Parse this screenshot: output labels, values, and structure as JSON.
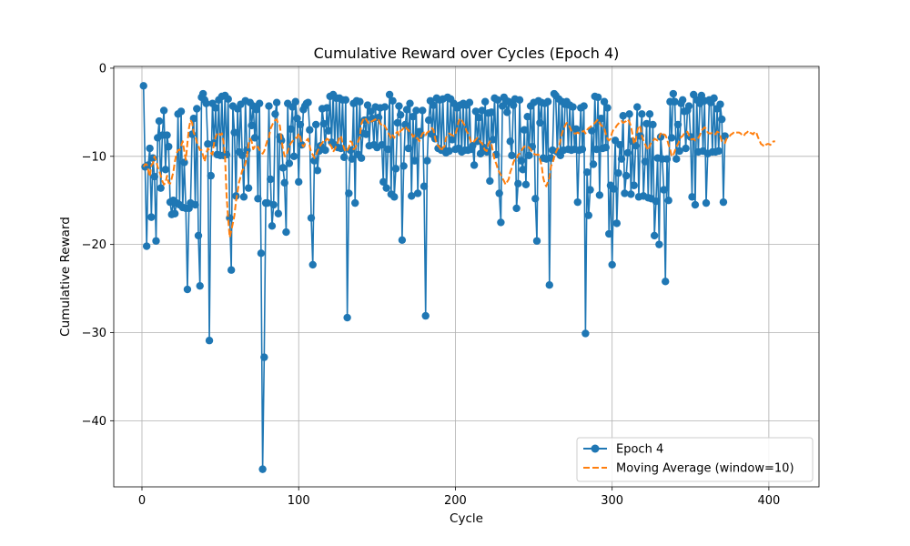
{
  "chart_data": {
    "type": "line",
    "title": "Cumulative Reward over Cycles (Epoch 4)",
    "xlabel": "Cycle",
    "ylabel": "Cumulative Reward",
    "xlim": [
      -18,
      432
    ],
    "ylim": [
      -47.5,
      0.2
    ],
    "xticks": [
      0,
      100,
      200,
      300,
      400
    ],
    "yticks": [
      0,
      -10,
      -20,
      -30,
      -40
    ],
    "ytick_labels": [
      "0",
      "−10",
      "−20",
      "−30",
      "−40"
    ],
    "grid": true,
    "legend_position": "lower right",
    "colors": {
      "series": "#1f77b4",
      "moving_average": "#ff7f0e"
    },
    "series": [
      {
        "name": "Epoch 4",
        "style": "line-marker",
        "x_start": 1,
        "values": [
          -2.0,
          -11.2,
          -20.2,
          -11.0,
          -9.1,
          -16.9,
          -10.2,
          -12.3,
          -19.6,
          -7.9,
          -6.0,
          -13.6,
          -7.6,
          -4.8,
          -11.5,
          -7.6,
          -8.9,
          -15.2,
          -16.6,
          -15.0,
          -16.5,
          -15.3,
          -5.2,
          -15.5,
          -4.9,
          -15.8,
          -10.7,
          -15.9,
          -25.1,
          -15.9,
          -15.3,
          -7.5,
          -5.7,
          -15.5,
          -4.6,
          -19.0,
          -24.7,
          -3.3,
          -2.9,
          -3.6,
          -4.0,
          -8.6,
          -30.9,
          -12.2,
          -4.0,
          -8.5,
          -4.5,
          -9.8,
          -3.6,
          -9.9,
          -3.2,
          -9.9,
          -3.1,
          -9.8,
          -3.5,
          -17.0,
          -22.9,
          -4.3,
          -7.3,
          -14.5,
          -4.6,
          -9.5,
          -4.1,
          -9.9,
          -14.6,
          -3.7,
          -9.3,
          -13.6,
          -3.9,
          -6.5,
          -4.3,
          -7.9,
          -4.7,
          -14.8,
          -4.0,
          -21.0,
          -45.5,
          -32.8,
          -15.3,
          -15.3,
          -4.3,
          -12.6,
          -17.9,
          -15.5,
          -5.2,
          -3.9,
          -16.5,
          -7.8,
          -8.2,
          -11.3,
          -13.0,
          -18.6,
          -4.0,
          -10.8,
          -6.9,
          -4.4,
          -10.0,
          -3.8,
          -5.7,
          -12.9,
          -6.4,
          -8.7,
          -4.7,
          -4.3,
          -4.0,
          -3.9,
          -7.0,
          -17.0,
          -22.3,
          -10.5,
          -6.4,
          -11.6,
          -9.4,
          -8.8,
          -4.6,
          -6.3,
          -9.3,
          -4.5,
          -7.1,
          -3.2,
          -8.4,
          -3.0,
          -8.7,
          -3.4,
          -9.0,
          -3.4,
          -9.1,
          -3.6,
          -10.1,
          -3.6,
          -28.3,
          -14.2,
          -9.3,
          -10.3,
          -4.0,
          -15.3,
          -3.7,
          -9.8,
          -3.8,
          -10.2,
          -7.4,
          -5.9,
          -7.5,
          -4.2,
          -8.8,
          -4.9,
          -5.7,
          -8.7,
          -4.4,
          -9.0,
          -5.6,
          -4.5,
          -8.7,
          -12.9,
          -4.4,
          -13.6,
          -9.2,
          -3.0,
          -14.3,
          -3.7,
          -14.6,
          -11.4,
          -6.2,
          -4.3,
          -5.3,
          -19.5,
          -11.1,
          -6.4,
          -4.7,
          -9.1,
          -4.0,
          -14.5,
          -5.5,
          -10.5,
          -4.8,
          -14.2,
          -7.2,
          -7.6,
          -4.8,
          -13.4,
          -28.1,
          -10.5,
          -5.9,
          -3.7,
          -7.5,
          -4.2,
          -8.0,
          -3.4,
          -9.1,
          -3.6,
          -9.3,
          -3.5,
          -9.3,
          -9.6,
          -3.3,
          -9.4,
          -3.5,
          -8.1,
          -4.0,
          -9.2,
          -4.5,
          -9.1,
          -4.2,
          -9.5,
          -4.0,
          -9.3,
          -4.2,
          -9.3,
          -3.9,
          -9.2,
          -8.8,
          -11.0,
          -4.9,
          -8.3,
          -5.6,
          -9.7,
          -4.8,
          -9.0,
          -3.8,
          -9.5,
          -5.1,
          -12.8,
          -5.0,
          -8.1,
          -3.4,
          -9.8,
          -3.6,
          -14.2,
          -17.5,
          -4.3,
          -3.3,
          -3.6,
          -5.0,
          -3.8,
          -8.3,
          -9.9,
          -4.2,
          -3.5,
          -15.9,
          -13.1,
          -3.6,
          -10.5,
          -11.5,
          -7.0,
          -13.2,
          -5.5,
          -9.9,
          -4.3,
          -8.9,
          -3.9,
          -14.8,
          -19.6,
          -3.7,
          -6.2,
          -3.9,
          -10.2,
          -4.0,
          -10.3,
          -3.8,
          -24.6,
          -10.2,
          -9.3,
          -2.9,
          -3.1,
          -9.5,
          -3.5,
          -9.9,
          -3.8,
          -9.3,
          -4.1,
          -3.8,
          -9.2,
          -4.2,
          -9.3,
          -4.4,
          -9.2,
          -6.9,
          -15.2,
          -9.3,
          -4.5,
          -9.2,
          -4.3,
          -30.1,
          -11.8,
          -16.7,
          -13.8,
          -7.1,
          -10.9,
          -3.2,
          -9.2,
          -3.3,
          -14.4,
          -5.7,
          -9.1,
          -3.8,
          -9.0,
          -4.5,
          -18.8,
          -13.3,
          -22.3,
          -13.7,
          -8.2,
          -17.6,
          -11.9,
          -8.7,
          -10.3,
          -5.4,
          -14.2,
          -12.2,
          -9.6,
          -5.2,
          -14.3,
          -8.3,
          -13.3,
          -8.8,
          -4.4,
          -14.6,
          -7.7,
          -5.2,
          -14.5,
          -10.6,
          -6.3,
          -14.7,
          -5.2,
          -14.8,
          -6.4,
          -19.0,
          -15.1,
          -10.2,
          -20.0,
          -7.8,
          -10.3,
          -13.8,
          -24.2,
          -10.3,
          -15.0,
          -3.8,
          -7.9,
          -2.9,
          -3.8,
          -10.3,
          -6.4,
          -9.4,
          -4.0,
          -3.6,
          -4.9,
          -9.1,
          -4.8,
          -4.3,
          -7.8,
          -14.6,
          -3.0,
          -15.5,
          -3.6,
          -9.5,
          -4.0,
          -3.1,
          -9.4,
          -3.7,
          -15.3,
          -9.7,
          -3.6,
          -3.9,
          -9.5,
          -3.4,
          -9.5,
          -4.6,
          -9.4,
          -4.1,
          -5.8,
          -15.2,
          -7.7
        ],
        "color": "#1f77b4"
      },
      {
        "name": "Moving Average (window=10)",
        "style": "dashed",
        "x_start": 1,
        "values": [
          -11.2,
          -10.9,
          -10.9,
          -11.6,
          -12.3,
          -11.0,
          -10.8,
          -10.0,
          -10.5,
          -11.2,
          -11.6,
          -12.2,
          -12.8,
          -13.2,
          -13.0,
          -12.2,
          -13.0,
          -13.1,
          -12.5,
          -11.8,
          -10.6,
          -9.7,
          -9.3,
          -9.3,
          -8.8,
          -8.3,
          -9.4,
          -10.4,
          -8.5,
          -6.8,
          -5.9,
          -6.2,
          -7.3,
          -7.7,
          -8.4,
          -8.8,
          -9.3,
          -9.3,
          -9.9,
          -10.6,
          -9.7,
          -9.1,
          -9.3,
          -9.6,
          -9.8,
          -8.5,
          -7.8,
          -7.4,
          -7.3,
          -7.6,
          -7.4,
          -8.3,
          -10.0,
          -14.5,
          -17.1,
          -19.2,
          -18.4,
          -17.6,
          -16.7,
          -15.1,
          -14.0,
          -12.9,
          -12.3,
          -11.6,
          -11.4,
          -10.8,
          -10.0,
          -8.6,
          -8.0,
          -8.3,
          -9.2,
          -8.9,
          -9.1,
          -8.9,
          -9.3,
          -9.4,
          -9.7,
          -9.4,
          -8.8,
          -8.2,
          -7.9,
          -6.9,
          -6.5,
          -6.1,
          -5.9,
          -5.8,
          -6.4,
          -6.5,
          -8.1,
          -9.2,
          -10.0,
          -10.0,
          -9.4,
          -8.9,
          -8.5,
          -8.3,
          -8.1,
          -7.9,
          -7.9,
          -7.4,
          -7.8,
          -8.6,
          -8.9,
          -8.6,
          -8.2,
          -8.0,
          -8.8,
          -9.6,
          -9.8,
          -10.2,
          -9.9,
          -9.4,
          -9.1,
          -8.7,
          -8.5,
          -8.2,
          -8.3,
          -8.0,
          -8.1,
          -8.7,
          -8.9,
          -9.5,
          -9.2,
          -8.8,
          -8.4,
          -7.8,
          -7.7,
          -8.5,
          -9.1,
          -9.5,
          -9.3,
          -9.0,
          -8.3,
          -8.4,
          -9.2,
          -9.1,
          -8.6,
          -8.3,
          -7.8,
          -6.3,
          -5.9,
          -5.6,
          -5.8,
          -6.1,
          -6.3,
          -6.1,
          -6.0,
          -5.9,
          -5.8,
          -6.0,
          -5.9,
          -6.3,
          -6.4,
          -6.3,
          -6.6,
          -6.9,
          -7.3,
          -7.6,
          -8.0,
          -7.6,
          -7.9,
          -7.4,
          -7.2,
          -7.6,
          -7.1,
          -7.0,
          -6.8,
          -6.6,
          -6.9,
          -7.0,
          -7.3,
          -7.4,
          -7.8,
          -7.6,
          -7.9,
          -8.0,
          -8.3,
          -7.8,
          -7.4,
          -7.3,
          -7.6,
          -7.3,
          -7.2,
          -6.9,
          -6.8,
          -7.0,
          -7.9,
          -8.6,
          -8.8,
          -9.0,
          -9.4,
          -9.0,
          -8.9,
          -7.9,
          -7.6,
          -7.4,
          -7.5,
          -7.6,
          -7.7,
          -7.5,
          -6.9,
          -6.1,
          -5.7,
          -5.9,
          -6.2,
          -6.5,
          -7.1,
          -7.4,
          -7.8,
          -8.4,
          -8.5,
          -8.3,
          -8.1,
          -7.9,
          -8.0,
          -8.4,
          -8.5,
          -9.0,
          -9.3,
          -9.4,
          -8.6,
          -8.3,
          -8.6,
          -9.5,
          -10.4,
          -10.8,
          -11.4,
          -11.8,
          -12.1,
          -12.5,
          -12.8,
          -13.2,
          -12.9,
          -12.6,
          -11.8,
          -11.3,
          -10.7,
          -10.3,
          -10.3,
          -9.8,
          -9.7,
          -9.4,
          -9.1,
          -8.9,
          -8.8,
          -8.9,
          -9.0,
          -9.2,
          -9.6,
          -9.7,
          -9.8,
          -9.8,
          -9.8,
          -10.4,
          -11.0,
          -12.4,
          -13.1,
          -13.4,
          -12.9,
          -12.4,
          -11.1,
          -10.8,
          -10.1,
          -9.6,
          -9.2,
          -9.0,
          -8.2,
          -7.4,
          -6.9,
          -6.5,
          -6.2,
          -6.3,
          -6.7,
          -7.1,
          -7.3,
          -7.4,
          -7.4,
          -7.3,
          -7.4,
          -7.3,
          -7.2,
          -7.1,
          -7.4,
          -7.0,
          -6.8,
          -6.7,
          -6.5,
          -6.4,
          -6.2,
          -6.0,
          -5.8,
          -6.2,
          -6.5,
          -6.6,
          -6.8,
          -7.5,
          -8.0,
          -8.2,
          -8.0,
          -7.3,
          -6.9,
          -6.8,
          -6.5,
          -6.3,
          -6.1,
          -6.0,
          -6.2,
          -6.1,
          -6.0,
          -5.8,
          -6.1,
          -6.6,
          -7.5,
          -8.6,
          -8.2,
          -7.2,
          -6.5,
          -6.7,
          -7.7,
          -8.2,
          -8.6,
          -9.0,
          -9.3,
          -8.8,
          -8.4,
          -8.3,
          -8.0,
          -8.1,
          -8.2,
          -7.9,
          -7.4,
          -7.7,
          -7.5,
          -7.6,
          -8.0,
          -8.7,
          -9.2,
          -10.0,
          -9.9,
          -9.4,
          -8.9,
          -8.6,
          -8.2,
          -7.8,
          -7.7,
          -7.4,
          -7.4,
          -7.2,
          -7.6,
          -8.0,
          -8.1,
          -8.0,
          -8.2,
          -8.1,
          -7.9,
          -7.6,
          -7.1,
          -6.9,
          -6.7,
          -6.9,
          -7.3,
          -7.4,
          -7.4,
          -7.3,
          -7.4,
          -7.5,
          -7.2,
          -7.3,
          -7.7,
          -8.3,
          -8.4,
          -8.5,
          -8.0,
          -7.8,
          -7.7,
          -7.5,
          -7.4,
          -7.2,
          -7.3,
          -7.3,
          -7.3,
          -7.4,
          -7.6,
          -7.7,
          -7.4,
          -7.3,
          -7.1,
          -7.3,
          -7.4,
          -7.5,
          -7.2,
          -7.3,
          -7.8,
          -8.2,
          -8.6,
          -8.7,
          -8.9,
          -8.7,
          -8.6,
          -8.6,
          -8.7,
          -8.4,
          -8.3,
          -8.3
        ],
        "color": "#ff7f0e"
      }
    ]
  }
}
